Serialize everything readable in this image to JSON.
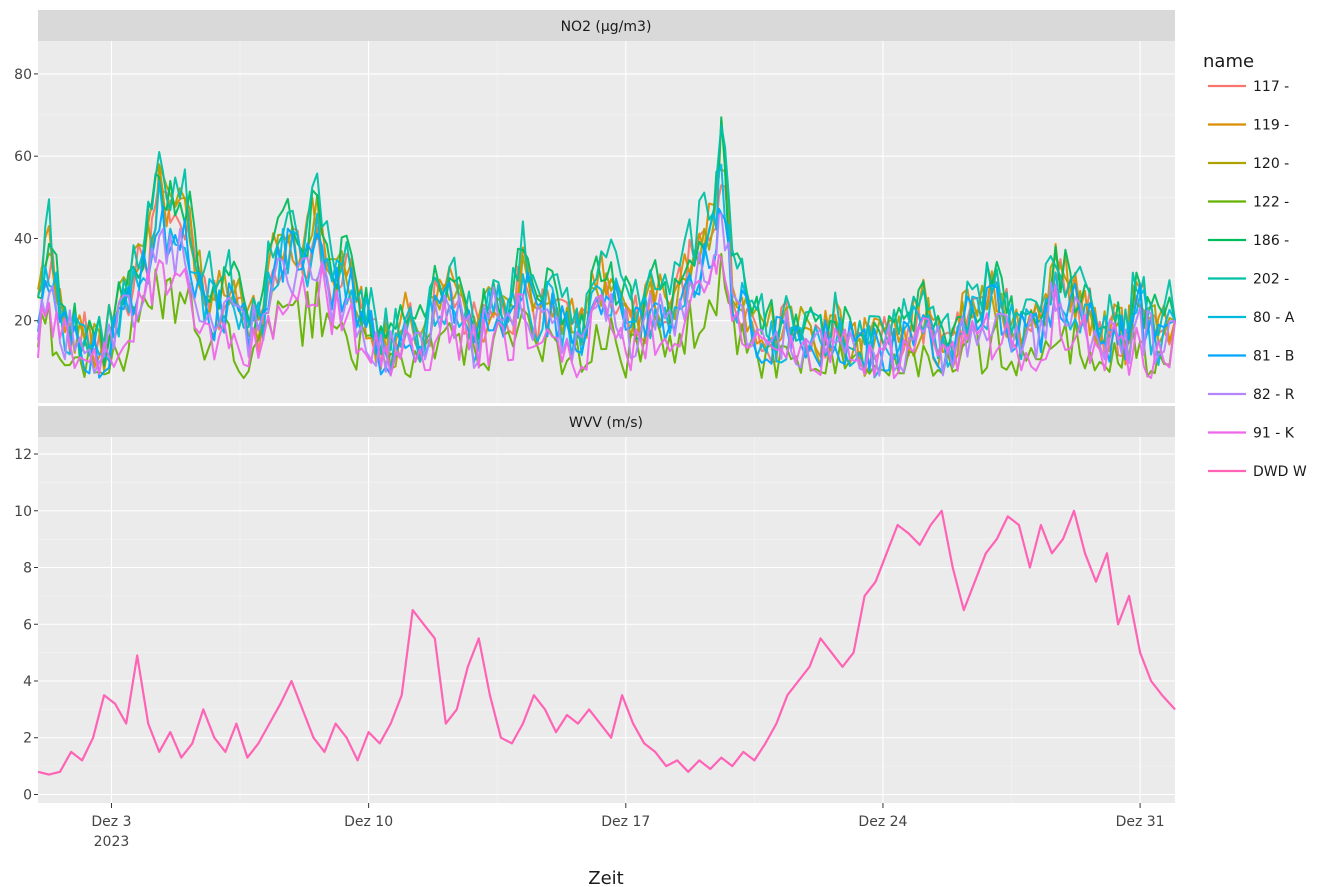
{
  "chart_data": {
    "type": "line",
    "xlabel": "Zeit",
    "x_ticks": [
      {
        "label": "Dez 3",
        "sublabel": "2023",
        "day": 3
      },
      {
        "label": "Dez 10",
        "sublabel": "",
        "day": 10
      },
      {
        "label": "Dez 17",
        "sublabel": "",
        "day": 17
      },
      {
        "label": "Dez 24",
        "sublabel": "",
        "day": 24
      },
      {
        "label": "Dez 31",
        "sublabel": "",
        "day": 31
      }
    ],
    "xlim": [
      "2023-12-01",
      "2023-12-31T23:00"
    ],
    "legend": {
      "title": "name",
      "position": "right",
      "entries": [
        {
          "name": "117 -",
          "color": "#F8766D"
        },
        {
          "name": "119 -",
          "color": "#DB8E00"
        },
        {
          "name": "120 -",
          "color": "#AEA200"
        },
        {
          "name": "122 -",
          "color": "#64B200"
        },
        {
          "name": "186 -",
          "color": "#00BD5C"
        },
        {
          "name": "202 -",
          "color": "#00C1A7"
        },
        {
          "name": "80 - A",
          "color": "#00BADE"
        },
        {
          "name": "81 - B",
          "color": "#00A6FF"
        },
        {
          "name": "82 - R",
          "color": "#B385FF"
        },
        {
          "name": "91 - K",
          "color": "#EF67EB"
        },
        {
          "name": "DWD W",
          "color": "#FF63B6"
        }
      ]
    },
    "panels": [
      {
        "strip": "NO2 (µg/m3)",
        "ylim": [
          0,
          88
        ],
        "y_ticks": [
          "20",
          "40",
          "60",
          "80"
        ],
        "grid": true,
        "trend_points": [
          [
            1.0,
            22
          ],
          [
            1.3,
            35
          ],
          [
            1.6,
            20
          ],
          [
            2.0,
            16
          ],
          [
            2.4,
            14
          ],
          [
            2.8,
            12
          ],
          [
            3.2,
            20
          ],
          [
            3.6,
            28
          ],
          [
            4.0,
            35
          ],
          [
            4.3,
            48
          ],
          [
            4.6,
            40
          ],
          [
            5.0,
            42
          ],
          [
            5.4,
            28
          ],
          [
            5.8,
            22
          ],
          [
            6.2,
            25
          ],
          [
            6.6,
            20
          ],
          [
            7.0,
            18
          ],
          [
            7.4,
            30
          ],
          [
            7.8,
            38
          ],
          [
            8.2,
            32
          ],
          [
            8.6,
            40
          ],
          [
            9.0,
            28
          ],
          [
            9.4,
            30
          ],
          [
            9.8,
            22
          ],
          [
            10.2,
            15
          ],
          [
            10.6,
            12
          ],
          [
            11.0,
            18
          ],
          [
            11.4,
            14
          ],
          [
            11.8,
            22
          ],
          [
            12.2,
            26
          ],
          [
            12.6,
            20
          ],
          [
            13.0,
            15
          ],
          [
            13.4,
            24
          ],
          [
            13.8,
            18
          ],
          [
            14.2,
            30
          ],
          [
            14.6,
            20
          ],
          [
            15.0,
            24
          ],
          [
            15.4,
            18
          ],
          [
            15.8,
            16
          ],
          [
            16.2,
            26
          ],
          [
            16.6,
            28
          ],
          [
            17.0,
            20
          ],
          [
            17.4,
            18
          ],
          [
            17.8,
            24
          ],
          [
            18.2,
            20
          ],
          [
            18.6,
            30
          ],
          [
            19.0,
            34
          ],
          [
            19.4,
            40
          ],
          [
            19.6,
            55
          ],
          [
            19.9,
            28
          ],
          [
            20.3,
            20
          ],
          [
            20.7,
            16
          ],
          [
            21.1,
            15
          ],
          [
            21.5,
            18
          ],
          [
            21.9,
            14
          ],
          [
            22.3,
            13
          ],
          [
            22.7,
            16
          ],
          [
            23.1,
            14
          ],
          [
            23.5,
            12
          ],
          [
            23.9,
            13
          ],
          [
            24.3,
            14
          ],
          [
            24.7,
            15
          ],
          [
            25.1,
            20
          ],
          [
            25.5,
            14
          ],
          [
            25.9,
            12
          ],
          [
            26.3,
            20
          ],
          [
            26.7,
            22
          ],
          [
            27.1,
            24
          ],
          [
            27.5,
            18
          ],
          [
            27.9,
            16
          ],
          [
            28.3,
            20
          ],
          [
            28.7,
            30
          ],
          [
            29.1,
            24
          ],
          [
            29.5,
            22
          ],
          [
            29.9,
            16
          ],
          [
            30.3,
            18
          ],
          [
            30.6,
            14
          ],
          [
            30.9,
            26
          ],
          [
            31.2,
            18
          ],
          [
            31.5,
            16
          ],
          [
            31.95,
            20
          ]
        ]
      },
      {
        "strip": "WVV (m/s)",
        "ylim": [
          -0.3,
          12.6
        ],
        "y_ticks": [
          "0",
          "2",
          "4",
          "6",
          "8",
          "10",
          "12"
        ],
        "grid": true,
        "series": [
          {
            "name": "DWD W",
            "points": [
              [
                1.0,
                0.8
              ],
              [
                1.3,
                0.7
              ],
              [
                1.6,
                0.8
              ],
              [
                1.9,
                1.5
              ],
              [
                2.2,
                1.2
              ],
              [
                2.5,
                2.0
              ],
              [
                2.8,
                3.5
              ],
              [
                3.1,
                3.2
              ],
              [
                3.4,
                2.5
              ],
              [
                3.7,
                4.9
              ],
              [
                4.0,
                2.5
              ],
              [
                4.3,
                1.5
              ],
              [
                4.6,
                2.2
              ],
              [
                4.9,
                1.3
              ],
              [
                5.2,
                1.8
              ],
              [
                5.5,
                3.0
              ],
              [
                5.8,
                2.0
              ],
              [
                6.1,
                1.5
              ],
              [
                6.4,
                2.5
              ],
              [
                6.7,
                1.3
              ],
              [
                7.0,
                1.8
              ],
              [
                7.3,
                2.5
              ],
              [
                7.6,
                3.2
              ],
              [
                7.9,
                4.0
              ],
              [
                8.2,
                3.0
              ],
              [
                8.5,
                2.0
              ],
              [
                8.8,
                1.5
              ],
              [
                9.1,
                2.5
              ],
              [
                9.4,
                2.0
              ],
              [
                9.7,
                1.2
              ],
              [
                10.0,
                2.2
              ],
              [
                10.3,
                1.8
              ],
              [
                10.6,
                2.5
              ],
              [
                10.9,
                3.5
              ],
              [
                11.2,
                6.5
              ],
              [
                11.5,
                6.0
              ],
              [
                11.8,
                5.5
              ],
              [
                12.1,
                2.5
              ],
              [
                12.4,
                3.0
              ],
              [
                12.7,
                4.5
              ],
              [
                13.0,
                5.5
              ],
              [
                13.3,
                3.5
              ],
              [
                13.6,
                2.0
              ],
              [
                13.9,
                1.8
              ],
              [
                14.2,
                2.5
              ],
              [
                14.5,
                3.5
              ],
              [
                14.8,
                3.0
              ],
              [
                15.1,
                2.2
              ],
              [
                15.4,
                2.8
              ],
              [
                15.7,
                2.5
              ],
              [
                16.0,
                3.0
              ],
              [
                16.3,
                2.5
              ],
              [
                16.6,
                2.0
              ],
              [
                16.9,
                3.5
              ],
              [
                17.2,
                2.5
              ],
              [
                17.5,
                1.8
              ],
              [
                17.8,
                1.5
              ],
              [
                18.1,
                1.0
              ],
              [
                18.4,
                1.2
              ],
              [
                18.7,
                0.8
              ],
              [
                19.0,
                1.2
              ],
              [
                19.3,
                0.9
              ],
              [
                19.6,
                1.3
              ],
              [
                19.9,
                1.0
              ],
              [
                20.2,
                1.5
              ],
              [
                20.5,
                1.2
              ],
              [
                20.8,
                1.8
              ],
              [
                21.1,
                2.5
              ],
              [
                21.4,
                3.5
              ],
              [
                21.7,
                4.0
              ],
              [
                22.0,
                4.5
              ],
              [
                22.3,
                5.5
              ],
              [
                22.6,
                5.0
              ],
              [
                22.9,
                4.5
              ],
              [
                23.2,
                5.0
              ],
              [
                23.5,
                7.0
              ],
              [
                23.8,
                7.5
              ],
              [
                24.1,
                8.5
              ],
              [
                24.4,
                9.5
              ],
              [
                24.7,
                9.2
              ],
              [
                25.0,
                8.8
              ],
              [
                25.3,
                9.5
              ],
              [
                25.6,
                10.0
              ],
              [
                25.9,
                8.0
              ],
              [
                26.2,
                6.5
              ],
              [
                26.5,
                7.5
              ],
              [
                26.8,
                8.5
              ],
              [
                27.1,
                9.0
              ],
              [
                27.4,
                9.8
              ],
              [
                27.7,
                9.5
              ],
              [
                28.0,
                8.0
              ],
              [
                28.3,
                9.5
              ],
              [
                28.6,
                8.5
              ],
              [
                28.9,
                9.0
              ],
              [
                29.2,
                10.0
              ],
              [
                29.5,
                8.5
              ],
              [
                29.8,
                7.5
              ],
              [
                30.1,
                8.5
              ],
              [
                30.4,
                6.0
              ],
              [
                30.7,
                7.0
              ],
              [
                31.0,
                5.0
              ],
              [
                31.3,
                4.0
              ],
              [
                31.6,
                3.5
              ],
              [
                31.95,
                3.0
              ]
            ]
          }
        ]
      }
    ]
  }
}
